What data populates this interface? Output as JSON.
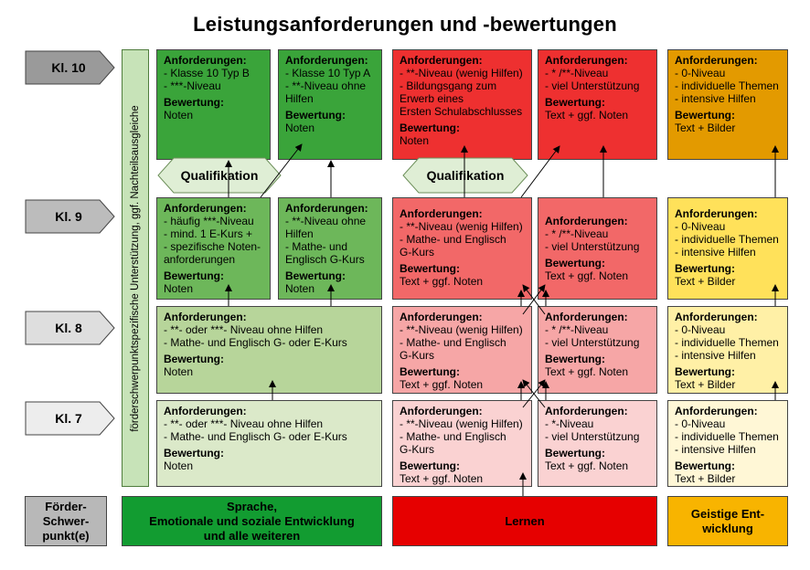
{
  "title": "Leistungsanforderungen und -bewertungen",
  "grades": [
    "Kl. 10",
    "Kl. 9",
    "Kl. 8",
    "Kl. 7"
  ],
  "sidebar_label": "förderschwerpunktspezifische Unterstützung, ggf. Nachteilsausgleiche",
  "qualifikation": "Qualifikation",
  "kl10": [
    {
      "h1": "Anforderungen:",
      "lines": [
        "- Klasse 10 Typ B",
        "- ***-Niveau"
      ],
      "h2": "Bewertung:",
      "eval": [
        "Noten"
      ]
    },
    {
      "h1": "Anforderungen:",
      "lines": [
        "- Klasse 10 Typ A",
        "- **-Niveau ohne",
        "  Hilfen"
      ],
      "h2": "Bewertung:",
      "eval": [
        "Noten"
      ]
    },
    {
      "h1": "Anforderungen:",
      "lines": [
        "- **-Niveau (wenig Hilfen)",
        "- Bildungsgang zum",
        "  Erwerb eines",
        "  Ersten Schulabschlusses"
      ],
      "h2": "Bewertung:",
      "eval": [
        "Noten"
      ]
    },
    {
      "h1": "Anforderungen:",
      "lines": [
        "- * /**-Niveau",
        "- viel Unterstützung"
      ],
      "h2": "Bewertung:",
      "eval": [
        "Text + ggf. Noten"
      ]
    },
    {
      "h1": "Anforderungen:",
      "lines": [
        "- 0-Niveau",
        "- individuelle Themen",
        "- intensive Hilfen"
      ],
      "h2": "Bewertung:",
      "eval": [
        "Text + Bilder"
      ]
    }
  ],
  "kl9": [
    {
      "h1": "Anforderungen:",
      "lines": [
        "- häufig ***-Niveau",
        "- mind. 1 E-Kurs +",
        "- spezifische Noten-",
        "  anforderungen"
      ],
      "h2": "Bewertung:",
      "eval": [
        "Noten"
      ]
    },
    {
      "h1": "Anforderungen:",
      "lines": [
        "- **-Niveau ohne",
        "  Hilfen",
        "- Mathe- und",
        "  Englisch G-Kurs"
      ],
      "h2": "Bewertung:",
      "eval": [
        "Noten"
      ]
    },
    {
      "h1": "Anforderungen:",
      "lines": [
        "- **-Niveau (wenig Hilfen)",
        "- Mathe- und Englisch",
        "  G-Kurs"
      ],
      "h2": "Bewertung:",
      "eval": [
        "Text + ggf. Noten"
      ]
    },
    {
      "h1": "Anforderungen:",
      "lines": [
        "- * /**-Niveau",
        "- viel Unterstützung"
      ],
      "h2": "Bewertung:",
      "eval": [
        "Text + ggf. Noten"
      ]
    },
    {
      "h1": "Anforderungen:",
      "lines": [
        "- 0-Niveau",
        "- individuelle Themen",
        "- intensive Hilfen"
      ],
      "h2": "Bewertung:",
      "eval": [
        "Text + Bilder"
      ]
    }
  ],
  "kl8": [
    {
      "h1": "Anforderungen:",
      "lines": [
        "- **- oder ***- Niveau ohne Hilfen",
        "- Mathe- und Englisch G- oder E-Kurs"
      ],
      "h2": "Bewertung:",
      "eval": [
        "Noten"
      ]
    },
    {
      "h1": "Anforderungen:",
      "lines": [
        "- **-Niveau (wenig Hilfen)",
        "- Mathe- und Englisch",
        "  G-Kurs"
      ],
      "h2": "Bewertung:",
      "eval": [
        "Text + ggf. Noten"
      ]
    },
    {
      "h1": "Anforderungen:",
      "lines": [
        "- * /**-Niveau",
        "- viel Unterstützung"
      ],
      "h2": "Bewertung:",
      "eval": [
        "Text + ggf. Noten"
      ]
    },
    {
      "h1": "Anforderungen:",
      "lines": [
        "- 0-Niveau",
        "- individuelle Themen",
        "- intensive Hilfen"
      ],
      "h2": "Bewertung:",
      "eval": [
        "Text + Bilder"
      ]
    }
  ],
  "kl7": [
    {
      "h1": "Anforderungen:",
      "lines": [
        "- **- oder ***- Niveau ohne Hilfen",
        "- Mathe- und Englisch G- oder E-Kurs"
      ],
      "h2": "Bewertung:",
      "eval": [
        "Noten"
      ]
    },
    {
      "h1": "Anforderungen:",
      "lines": [
        "- **-Niveau (wenig Hilfen)",
        "- Mathe- und Englisch",
        "  G-Kurs"
      ],
      "h2": "Bewertung:",
      "eval": [
        "Text + ggf. Noten"
      ]
    },
    {
      "h1": "Anforderungen:",
      "lines": [
        "- *-Niveau",
        "- viel Unterstützung"
      ],
      "h2": "Bewertung:",
      "eval": [
        "Text + ggf. Noten"
      ]
    },
    {
      "h1": "Anforderungen:",
      "lines": [
        "- 0-Niveau",
        "- individuelle Themen",
        "- intensive Hilfen"
      ],
      "h2": "Bewertung:",
      "eval": [
        "Text + Bilder"
      ]
    }
  ],
  "bottom": {
    "label": [
      "Förder-",
      "Schwer-",
      "punkt(e)"
    ],
    "emotional": [
      "Sprache,",
      "Emotionale und soziale Entwicklung",
      "und alle weiteren"
    ],
    "lernen": [
      "Lernen"
    ],
    "geistig": [
      "Geistige Ent-",
      "wicklung"
    ]
  },
  "colors": {
    "g10": "#3aa43a",
    "g9": "#6db75a",
    "g8": "#b7d59a",
    "g7": "#dbe9c9",
    "r10": "#ee3030",
    "r9": "#f26868",
    "r8": "#f6a6a6",
    "r7": "#fad2d2",
    "y10": "#e39a00",
    "y9": "#ffe15a",
    "y8": "#fff0a6",
    "y7": "#fff7d6",
    "bottom_green": "#129c31",
    "bottom_red": "#e60000",
    "bottom_orange": "#f8b400"
  }
}
